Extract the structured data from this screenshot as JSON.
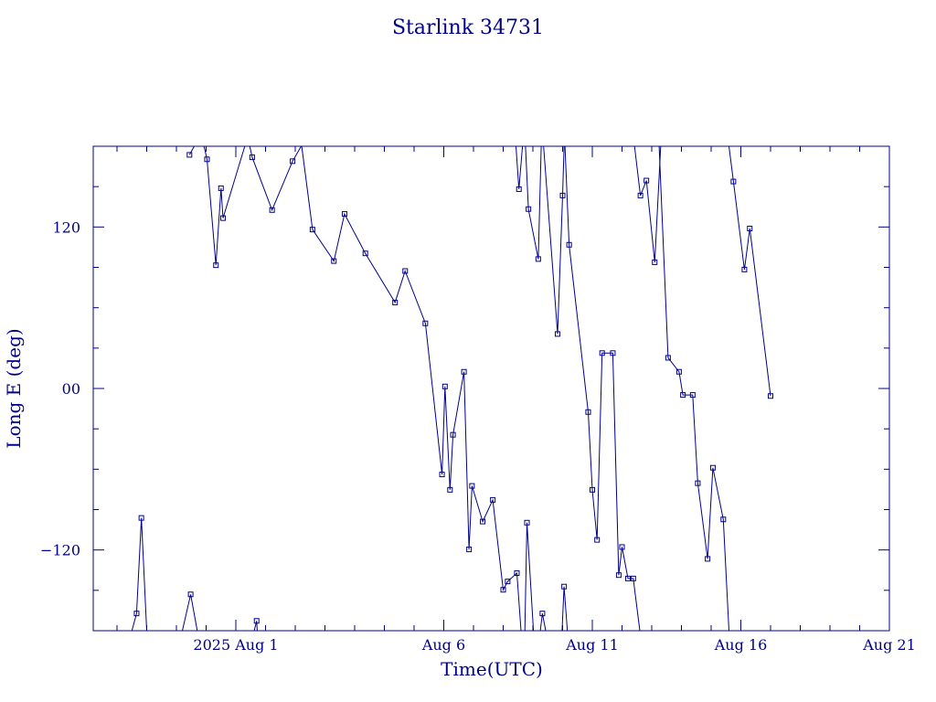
{
  "chart_data": {
    "type": "line",
    "title": "Starlink 34731",
    "xlabel": "Time(UTC)",
    "ylabel": "Long E (deg)",
    "color": "#00008b",
    "x_unit": "days since 2025 Jul 27 00:00 UTC",
    "xlim": [
      -1.8,
      25.0
    ],
    "ylim": [
      -180,
      180
    ],
    "x_ticks": [
      {
        "pos": 3,
        "label": "2025 Aug  1"
      },
      {
        "pos": 10,
        "label": "Aug  6"
      },
      {
        "pos": 15,
        "label": "Aug 11"
      },
      {
        "pos": 20,
        "label": "Aug 16"
      },
      {
        "pos": 25,
        "label": "Aug 21"
      }
    ],
    "y_ticks": [
      {
        "value": 120,
        "label": "120"
      },
      {
        "value": 0,
        "label": "00"
      },
      {
        "value": -120,
        "label": "−120"
      }
    ],
    "segments": [
      [
        [
          1.44,
          173.6
        ],
        [
          1.6,
          180
        ]
      ],
      [
        [
          1.93,
          180
        ],
        [
          2.03,
          170.3
        ],
        [
          2.33,
          91.6
        ],
        [
          2.5,
          148.8
        ],
        [
          2.57,
          126.6
        ],
        [
          3.3,
          180
        ]
      ],
      [
        [
          3.47,
          180
        ],
        [
          3.55,
          171.8
        ],
        [
          4.22,
          132.6
        ],
        [
          4.91,
          168.9
        ],
        [
          5.2,
          180
        ]
      ],
      [
        [
          5.22,
          180
        ],
        [
          5.58,
          118.1
        ],
        [
          6.3,
          94.7
        ],
        [
          6.66,
          129.7
        ],
        [
          7.36,
          100.4
        ],
        [
          8.36,
          63.9
        ],
        [
          8.7,
          87.3
        ],
        [
          9.38,
          48.4
        ],
        [
          9.94,
          -63.9
        ],
        [
          10.04,
          1.5
        ],
        [
          10.21,
          -75.3
        ],
        [
          10.31,
          -34.4
        ],
        [
          10.68,
          12.4
        ],
        [
          10.85,
          -119.6
        ],
        [
          10.95,
          -72.4
        ],
        [
          11.31,
          -98.9
        ],
        [
          11.65,
          -82.8
        ],
        [
          12.0,
          -149.6
        ],
        [
          12.15,
          -143.4
        ],
        [
          12.46,
          -137.2
        ],
        [
          12.6,
          -180
        ]
      ],
      [
        [
          12.73,
          -180
        ],
        [
          12.8,
          -99.7
        ],
        [
          13.02,
          -180
        ]
      ],
      [
        [
          13.25,
          -180
        ],
        [
          13.32,
          -167.2
        ],
        [
          13.43,
          -180
        ]
      ],
      [
        [
          13.98,
          -180
        ],
        [
          14.05,
          -147.2
        ],
        [
          14.16,
          -180
        ]
      ],
      [
        [
          12.43,
          180
        ],
        [
          12.53,
          148.1
        ],
        [
          12.65,
          180
        ]
      ],
      [
        [
          12.75,
          180
        ],
        [
          12.85,
          133.3
        ],
        [
          13.18,
          96.2
        ],
        [
          13.28,
          180
        ]
      ],
      [
        [
          13.36,
          180
        ],
        [
          13.83,
          40.5
        ],
        [
          14.0,
          143.4
        ],
        [
          14.05,
          180
        ]
      ],
      [
        [
          14.08,
          180
        ],
        [
          14.22,
          106.8
        ],
        [
          14.86,
          -17.5
        ],
        [
          15.0,
          -75.3
        ],
        [
          15.16,
          -112.5
        ],
        [
          15.33,
          26.3
        ],
        [
          15.69,
          26.3
        ],
        [
          15.89,
          -138.7
        ],
        [
          16.0,
          -117.8
        ],
        [
          16.2,
          -141.2
        ],
        [
          16.38,
          -141.2
        ],
        [
          16.6,
          -180
        ]
      ],
      [
        [
          16.42,
          180
        ],
        [
          16.62,
          143.4
        ],
        [
          16.82,
          154.5
        ],
        [
          17.1,
          93.8
        ],
        [
          17.3,
          180
        ]
      ],
      [
        [
          17.25,
          180
        ],
        [
          17.55,
          22.8
        ],
        [
          17.92,
          12.4
        ],
        [
          18.05,
          -4.8
        ],
        [
          18.38,
          -4.8
        ],
        [
          18.55,
          -70.4
        ],
        [
          18.88,
          -126.6
        ],
        [
          19.06,
          -58.9
        ],
        [
          19.41,
          -97.3
        ],
        [
          19.6,
          -180
        ]
      ],
      [
        [
          19.6,
          180
        ],
        [
          19.75,
          153.8
        ],
        [
          20.12,
          88.4
        ],
        [
          20.3,
          118.9
        ],
        [
          21.0,
          -5.6
        ]
      ],
      [
        [
          -0.5,
          -180
        ],
        [
          -0.34,
          -167.2
        ],
        [
          -0.18,
          -96.2
        ],
        [
          0.0,
          -180
        ]
      ],
      [
        [
          1.2,
          -180
        ],
        [
          1.48,
          -153.0
        ],
        [
          1.7,
          -180
        ]
      ],
      [
        [
          3.62,
          -180
        ],
        [
          3.7,
          -172.7
        ],
        [
          3.72,
          -180
        ]
      ]
    ]
  }
}
